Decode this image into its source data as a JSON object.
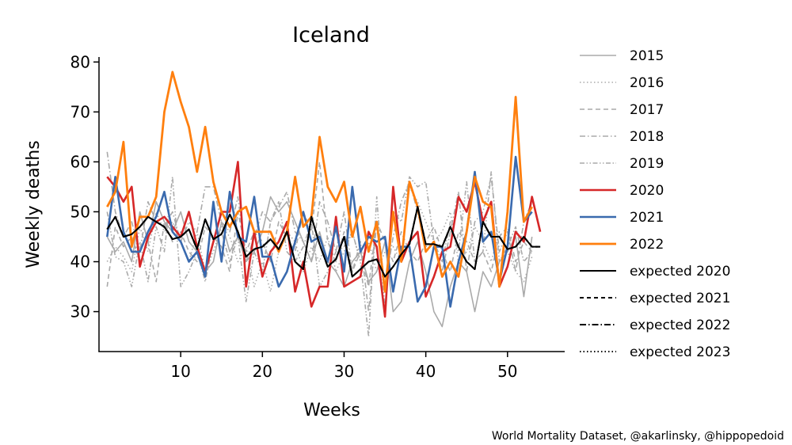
{
  "chart_data": {
    "type": "line",
    "title": "Iceland",
    "xlabel": "Weeks",
    "ylabel": "Weekly deaths",
    "xlim": [
      0,
      57
    ],
    "ylim": [
      22,
      81
    ],
    "xticks": [
      10,
      20,
      30,
      40,
      50
    ],
    "yticks": [
      30,
      40,
      50,
      60,
      70,
      80
    ],
    "grid": false,
    "legend_position": "right",
    "credit": "World Mortality Dataset, @akarlinsky, @hippopedoid",
    "series": [
      {
        "name": "2015",
        "color": "#aaaaaa",
        "dash": "",
        "width": 1.6,
        "values": [
          45,
          42,
          44,
          40,
          50,
          44,
          52,
          48,
          46,
          50,
          44,
          42,
          38,
          40,
          48,
          42,
          45,
          40,
          42,
          46,
          53,
          50,
          52,
          48,
          44,
          40,
          46,
          40,
          38,
          35,
          40,
          42,
          36,
          38,
          44,
          30,
          32,
          40,
          44,
          38,
          30,
          27,
          35,
          40,
          38,
          30,
          38,
          35,
          40,
          42,
          45,
          33,
          45
        ]
      },
      {
        "name": "2016",
        "color": "#aaaaaa",
        "dash": "1.5 3",
        "width": 1.6,
        "values": [
          40,
          43,
          41,
          38,
          47,
          42,
          50,
          46,
          48,
          44,
          40,
          46,
          38,
          42,
          47,
          45,
          40,
          43,
          35,
          40,
          34,
          42,
          46,
          44,
          38,
          43,
          40,
          45,
          38,
          42,
          46,
          40,
          44,
          38,
          42,
          43,
          40,
          55,
          52,
          48,
          44,
          46,
          50,
          40,
          42,
          47,
          44,
          40,
          46,
          42,
          38,
          36,
          41
        ]
      },
      {
        "name": "2017",
        "color": "#aaaaaa",
        "dash": "6 4",
        "width": 1.6,
        "values": [
          35,
          47,
          43,
          45,
          40,
          44,
          36,
          48,
          44,
          46,
          42,
          40,
          47,
          45,
          43,
          38,
          50,
          42,
          46,
          44,
          40,
          48,
          45,
          42,
          50,
          46,
          60,
          44,
          40,
          46,
          38,
          42,
          35,
          48,
          44,
          40,
          46,
          42,
          40,
          44,
          47,
          42,
          38,
          46,
          44,
          40,
          42,
          38,
          45,
          47,
          40,
          44,
          42
        ]
      },
      {
        "name": "2018",
        "color": "#aaaaaa",
        "dash": "7 3 1.5 3",
        "width": 1.6,
        "values": [
          62,
          50,
          45,
          48,
          42,
          52,
          48,
          47,
          50,
          44,
          48,
          46,
          55,
          55,
          48,
          46,
          53,
          40,
          45,
          50,
          48,
          51,
          54,
          46,
          44,
          40,
          52,
          48,
          42,
          50,
          38,
          44,
          30,
          48,
          35,
          45,
          52,
          56,
          50,
          43,
          44,
          38,
          46,
          54,
          38,
          48,
          50,
          57,
          42,
          46,
          38,
          48,
          52
        ]
      },
      {
        "name": "2019",
        "color": "#aaaaaa",
        "dash": "6 2.5 1.5 2.5 1.5 2.5",
        "width": 1.6,
        "values": [
          50,
          41,
          40,
          35,
          44,
          36,
          47,
          42,
          57,
          35,
          38,
          42,
          36,
          44,
          46,
          40,
          45,
          32,
          42,
          38,
          48,
          52,
          42,
          40,
          43,
          48,
          35,
          38,
          42,
          43,
          46,
          40,
          25,
          53,
          30,
          50,
          48,
          57,
          55,
          56,
          44,
          40,
          48,
          42,
          56,
          40,
          42,
          58,
          40,
          43,
          47,
          40,
          42
        ]
      },
      {
        "name": "2020",
        "color": "#d62728",
        "dash": "",
        "width": 2.6,
        "values": [
          57,
          55,
          52,
          55,
          39,
          45,
          48,
          49,
          47,
          45,
          50,
          43,
          38,
          44,
          50,
          50,
          60,
          35,
          46,
          37,
          42,
          44,
          48,
          34,
          40,
          31,
          35,
          35,
          49,
          35,
          36,
          37,
          46,
          43,
          29,
          55,
          40,
          44,
          46,
          33,
          37,
          42,
          43,
          53,
          50,
          56,
          48,
          52,
          35,
          39,
          46,
          44,
          53,
          46
        ]
      },
      {
        "name": "2021",
        "color": "#3a6aae",
        "dash": "",
        "width": 2.6,
        "values": [
          45,
          57,
          46,
          42,
          42,
          46,
          49,
          54,
          46,
          44,
          40,
          42,
          37,
          52,
          40,
          54,
          45,
          44,
          53,
          41,
          41,
          35,
          38,
          44,
          50,
          44,
          45,
          40,
          47,
          38,
          55,
          42,
          45,
          44,
          45,
          34,
          43,
          43,
          32,
          35,
          43,
          43,
          31,
          40,
          46,
          58,
          44,
          46,
          36,
          43,
          61,
          48,
          50
        ]
      },
      {
        "name": "2022",
        "color": "#ff7f0e",
        "dash": "",
        "width": 2.8,
        "values": [
          51,
          54,
          64,
          43,
          49,
          49,
          53,
          70,
          78,
          72,
          67,
          58,
          67,
          56,
          50,
          47,
          50,
          51,
          46,
          46,
          46,
          42,
          46,
          57,
          47,
          49,
          65,
          55,
          52,
          56,
          45,
          51,
          42,
          48,
          34,
          50,
          40,
          56,
          51,
          42,
          44,
          37,
          40,
          37,
          46,
          57,
          52,
          51,
          35,
          50,
          73,
          48,
          51
        ]
      },
      {
        "name": "expected 2020",
        "color": "#000000",
        "dash": "",
        "width": 2.0,
        "values": [
          46.5,
          49,
          45,
          45.5,
          47,
          49,
          48,
          47,
          44.5,
          45,
          46.5,
          42.5,
          48.5,
          44.5,
          45.5,
          49.5,
          46,
          41,
          42.5,
          43,
          44.5,
          42.5,
          46,
          40,
          38.5,
          49,
          43.5,
          39,
          40.5,
          45,
          37,
          38.5,
          40,
          40.5,
          37,
          39,
          41.5,
          43.5,
          51,
          43.5,
          43.5,
          43,
          47,
          43,
          40,
          38.5,
          48,
          45,
          45,
          42.5,
          43,
          45,
          43,
          43
        ]
      },
      {
        "name": "expected 2021",
        "color": "#000000",
        "dash": "5 4",
        "width": 2.0,
        "values": [
          46.5,
          49,
          45,
          45.5,
          47,
          49,
          48,
          47,
          44.5,
          45,
          46.5,
          42.5,
          48.5,
          44.5,
          45.5,
          49.5,
          46,
          41,
          42.5,
          43,
          44.5,
          42.5,
          46,
          40,
          38.5,
          49,
          43.5,
          39,
          40.5,
          45,
          37,
          38.5,
          40,
          40.5,
          37,
          39,
          41.5,
          43.5,
          51,
          43.5,
          43.5,
          43,
          47,
          43,
          40,
          38.5,
          48,
          45,
          45,
          42.5,
          43,
          45,
          43,
          43
        ]
      },
      {
        "name": "expected 2022",
        "color": "#000000",
        "dash": "8 3 1.5 3",
        "width": 2.0,
        "values": [
          46.5,
          49,
          45,
          45.5,
          47,
          49,
          48,
          47,
          44.5,
          45,
          46.5,
          42.5,
          48.5,
          44.5,
          45.5,
          49.5,
          46,
          41,
          42.5,
          43,
          44.5,
          42.5,
          46,
          40,
          38.5,
          49,
          43.5,
          39,
          40.5,
          45,
          37,
          38.5,
          40,
          40.5,
          37,
          39,
          41.5,
          43.5,
          51,
          43.5,
          43.5,
          43,
          47,
          43,
          40,
          38.5,
          48,
          45,
          45,
          42.5,
          43,
          45,
          43,
          43
        ]
      },
      {
        "name": "expected 2023",
        "color": "#000000",
        "dash": "1.5 3",
        "width": 2.0,
        "values": []
      }
    ]
  }
}
